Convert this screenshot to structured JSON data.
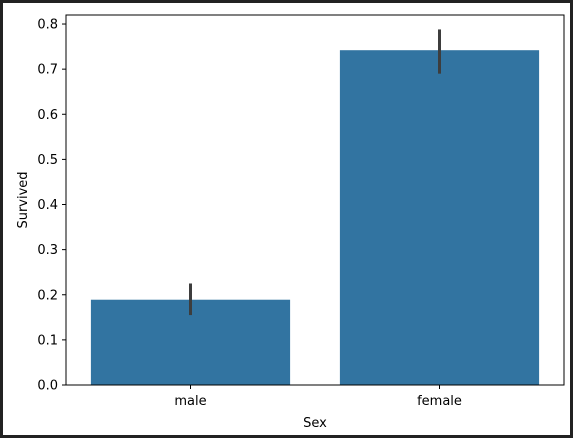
{
  "chart_data": {
    "type": "bar",
    "categories": [
      "male",
      "female"
    ],
    "values": [
      0.189,
      0.742
    ],
    "error_bars": [
      {
        "low": 0.155,
        "high": 0.225
      },
      {
        "low": 0.69,
        "high": 0.788
      }
    ],
    "xlabel": "Sex",
    "ylabel": "Survived",
    "ylim": [
      0.0,
      0.82
    ],
    "yticks": [
      "0.0",
      "0.1",
      "0.2",
      "0.3",
      "0.4",
      "0.5",
      "0.6",
      "0.7",
      "0.8"
    ],
    "bar_color": "#3274a1",
    "errorbar_color": "#3d3d3d",
    "grid": false,
    "legend": "none"
  }
}
